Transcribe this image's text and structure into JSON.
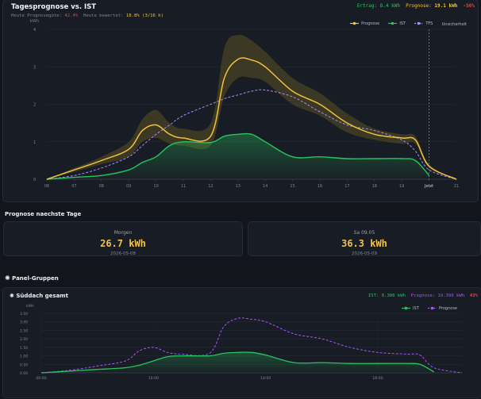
{
  "tages": {
    "title": "Tagesprognose vs. IST",
    "ertrag_label": "Ertrag:",
    "ertrag_value": "8.4 kWh",
    "prognose_label": "Prognose:",
    "prognose_value": "19.1 kWh",
    "delta": "-56%",
    "guete_label": "Heute Prognosegüte:",
    "guete_value": "42.4%",
    "bewertet_label": "Heute bewertet:",
    "bewertet_value": "18.8% (3/16 h)",
    "legend": [
      "Prognose",
      "IST",
      "TFS",
      "Unsicherheit"
    ],
    "colors": {
      "prognose": "#f3c23c",
      "ist": "#27c55f",
      "tfs": "#a78bfa",
      "band": "#5a5023"
    }
  },
  "chart_data": [
    {
      "type": "line",
      "ylabel": "kWh",
      "ylim": [
        0,
        4
      ],
      "y_ticks": [
        "0",
        "1",
        "2",
        "3",
        "4"
      ],
      "x_ticks": [
        "06",
        "07",
        "08",
        "09",
        "10",
        "11",
        "12",
        "13",
        "14",
        "15",
        "16",
        "17",
        "18",
        "19",
        "Jetzt",
        "21"
      ],
      "now_label": "Jetzt",
      "x": [
        6,
        7,
        8,
        9,
        9.5,
        10,
        10.5,
        11,
        12,
        12.5,
        13,
        13.5,
        14,
        15,
        16,
        17,
        18,
        19,
        19.5,
        20,
        21
      ],
      "series": [
        {
          "name": "Prognose",
          "values": [
            0,
            0.25,
            0.5,
            0.8,
            1.3,
            1.45,
            1.2,
            1.1,
            1.15,
            2.7,
            3.2,
            3.18,
            3.0,
            2.35,
            2.0,
            1.5,
            1.2,
            1.1,
            1.05,
            0.35,
            0
          ]
        },
        {
          "name": "IST",
          "values": [
            0,
            0.05,
            0.1,
            0.25,
            0.45,
            0.6,
            0.9,
            1.0,
            0.98,
            1.15,
            1.2,
            1.2,
            1.0,
            0.6,
            0.6,
            0.55,
            0.55,
            0.55,
            0.5,
            0.1,
            null
          ]
        },
        {
          "name": "TFS",
          "values": [
            0,
            0.1,
            0.3,
            0.6,
            0.9,
            1.2,
            1.45,
            1.7,
            2.0,
            2.15,
            2.25,
            2.35,
            2.38,
            2.2,
            1.8,
            1.45,
            1.3,
            1.05,
            0.75,
            0.25,
            0
          ]
        }
      ],
      "band": {
        "name": "Unsicherheit",
        "upper": [
          0,
          0.3,
          0.6,
          1.0,
          1.6,
          1.85,
          1.5,
          1.35,
          1.5,
          3.5,
          3.85,
          3.7,
          3.4,
          2.7,
          2.3,
          1.75,
          1.35,
          1.2,
          1.15,
          0.4,
          0
        ],
        "lower": [
          0,
          0.2,
          0.4,
          0.6,
          1.0,
          1.1,
          0.95,
          0.9,
          0.9,
          2.2,
          2.7,
          2.7,
          2.6,
          2.0,
          1.7,
          1.25,
          1.05,
          0.95,
          0.95,
          0.3,
          0
        ]
      }
    },
    {
      "type": "line",
      "ylabel": "kWh",
      "ylim": [
        0,
        3.5
      ],
      "y_ticks": [
        "0.00",
        "0.50",
        "1.00",
        "1.50",
        "2.00",
        "2.50",
        "3.00",
        "3.50"
      ],
      "x_ticks": [
        "06:00",
        "10:00",
        "14:00",
        "18:00"
      ],
      "x": [
        6,
        7,
        8,
        9,
        9.5,
        10,
        10.5,
        11,
        12,
        12.5,
        13,
        13.5,
        14,
        15,
        16,
        17,
        18,
        19,
        19.5,
        20,
        21
      ],
      "series": [
        {
          "name": "IST",
          "values": [
            0,
            0.1,
            0.2,
            0.3,
            0.45,
            0.7,
            0.95,
            1.0,
            1.0,
            1.15,
            1.2,
            1.2,
            1.05,
            0.6,
            0.6,
            0.55,
            0.55,
            0.55,
            0.5,
            0.05,
            null
          ]
        },
        {
          "name": "Prognose",
          "values": [
            0,
            0.15,
            0.4,
            0.7,
            1.3,
            1.5,
            1.2,
            1.1,
            1.15,
            2.7,
            3.2,
            3.15,
            3.0,
            2.3,
            2.0,
            1.5,
            1.2,
            1.1,
            1.05,
            0.3,
            0
          ]
        }
      ]
    }
  ],
  "prognose_tage": {
    "title": "Prognose naechste Tage",
    "days": [
      {
        "label": "Morgen",
        "value": "26.7 kWh",
        "date": "2026-05-08"
      },
      {
        "label": "Sa 09.05",
        "value": "36.3 kWh",
        "date": "2026-05-09"
      }
    ]
  },
  "panel_gruppen": {
    "title": "Panel-Gruppen",
    "icon": "gear-icon",
    "group": {
      "name": "Süddach gesamt",
      "ist_label": "IST:",
      "ist_value": "8.380 kWh",
      "prognose_label": "Prognose:",
      "prognose_value": "19.399 kWh",
      "pct": "43%",
      "legend": [
        "IST",
        "Prognose"
      ],
      "colors": {
        "ist": "#27c55f",
        "prognose": "#a855f7"
      }
    }
  }
}
